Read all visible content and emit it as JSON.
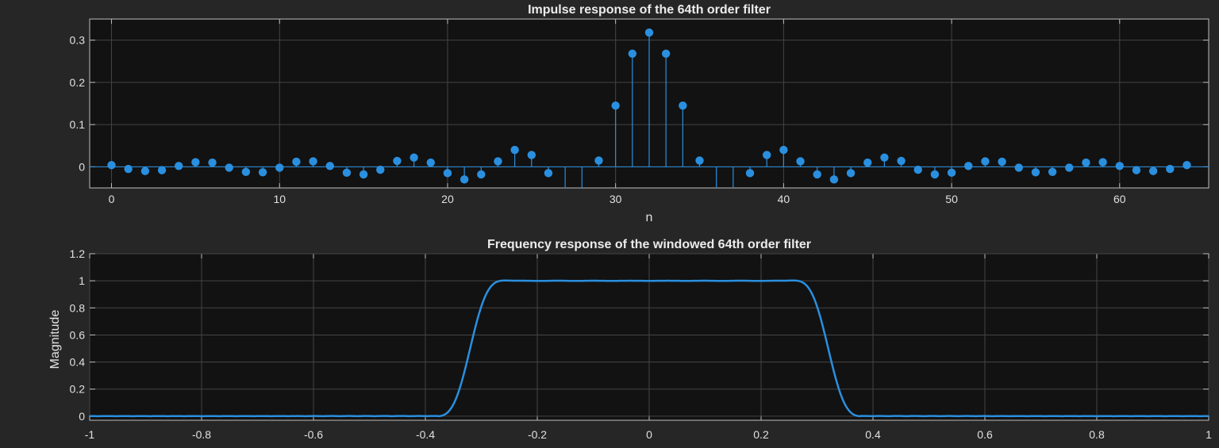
{
  "colors": {
    "background": "#262626",
    "axes": "#121212",
    "series": "#2a8fdf",
    "grid": "#444444",
    "text": "#e0e0e0"
  },
  "chart_data": [
    {
      "type": "stem",
      "title": "Impulse response of the 64th order filter",
      "xlabel": "n",
      "ylabel": "",
      "xlim": [
        -1.3,
        65.3
      ],
      "ylim": [
        -0.05,
        0.35
      ],
      "xticks": [
        0,
        10,
        20,
        30,
        40,
        50,
        60
      ],
      "yticks": [
        0,
        0.1,
        0.2,
        0.3
      ],
      "ytick_labels": [
        "0",
        "0.1",
        "0.2",
        "0.3"
      ],
      "grid": true,
      "x": [
        0,
        1,
        2,
        3,
        4,
        5,
        6,
        7,
        8,
        9,
        10,
        11,
        12,
        13,
        14,
        15,
        16,
        17,
        18,
        19,
        20,
        21,
        22,
        23,
        24,
        25,
        26,
        27,
        28,
        29,
        30,
        31,
        32,
        33,
        34,
        35,
        36,
        37,
        38,
        39,
        40,
        41,
        42,
        43,
        44,
        45,
        46,
        47,
        48,
        49,
        50,
        51,
        52,
        53,
        54,
        55,
        56,
        57,
        58,
        59,
        60,
        61,
        62,
        63,
        64
      ],
      "values": [
        0.004,
        -0.005,
        -0.01,
        -0.008,
        0.002,
        0.011,
        0.01,
        -0.002,
        -0.012,
        -0.013,
        -0.002,
        0.012,
        0.013,
        0.002,
        -0.014,
        -0.018,
        -0.007,
        0.014,
        0.022,
        0.01,
        -0.015,
        -0.03,
        -0.018,
        0.013,
        0.04,
        0.028,
        -0.015,
        -0.06,
        -0.06,
        0.015,
        0.145,
        0.268,
        0.318,
        0.268,
        0.145,
        0.015,
        -0.06,
        -0.06,
        -0.015,
        0.028,
        0.04,
        0.013,
        -0.018,
        -0.03,
        -0.015,
        0.01,
        0.022,
        0.014,
        -0.007,
        -0.018,
        -0.014,
        0.002,
        0.013,
        0.012,
        -0.002,
        -0.013,
        -0.012,
        -0.002,
        0.01,
        0.011,
        0.002,
        -0.008,
        -0.01,
        -0.005,
        0.004
      ]
    },
    {
      "type": "line",
      "title": "Frequency response of the windowed 64th order filter",
      "xlabel": "",
      "ylabel": "Magnitude",
      "xlim": [
        -1,
        1
      ],
      "ylim": [
        -0.03,
        1.2
      ],
      "xticks": [
        -1,
        -0.8,
        -0.6,
        -0.4,
        -0.2,
        0,
        0.2,
        0.4,
        0.6,
        0.8,
        1
      ],
      "xtick_labels": [
        "-1",
        "-0.8",
        "-0.6",
        "-0.4",
        "-0.2",
        "0",
        "0.2",
        "0.4",
        "0.6",
        "0.8",
        "1"
      ],
      "yticks": [
        0,
        0.2,
        0.4,
        0.6,
        0.8,
        1,
        1.2
      ],
      "ytick_labels": [
        "0",
        "0.2",
        "0.4",
        "0.6",
        "0.8",
        "1",
        "1.2"
      ],
      "grid": true,
      "cutoff": 0.32,
      "taps": 65
    }
  ]
}
